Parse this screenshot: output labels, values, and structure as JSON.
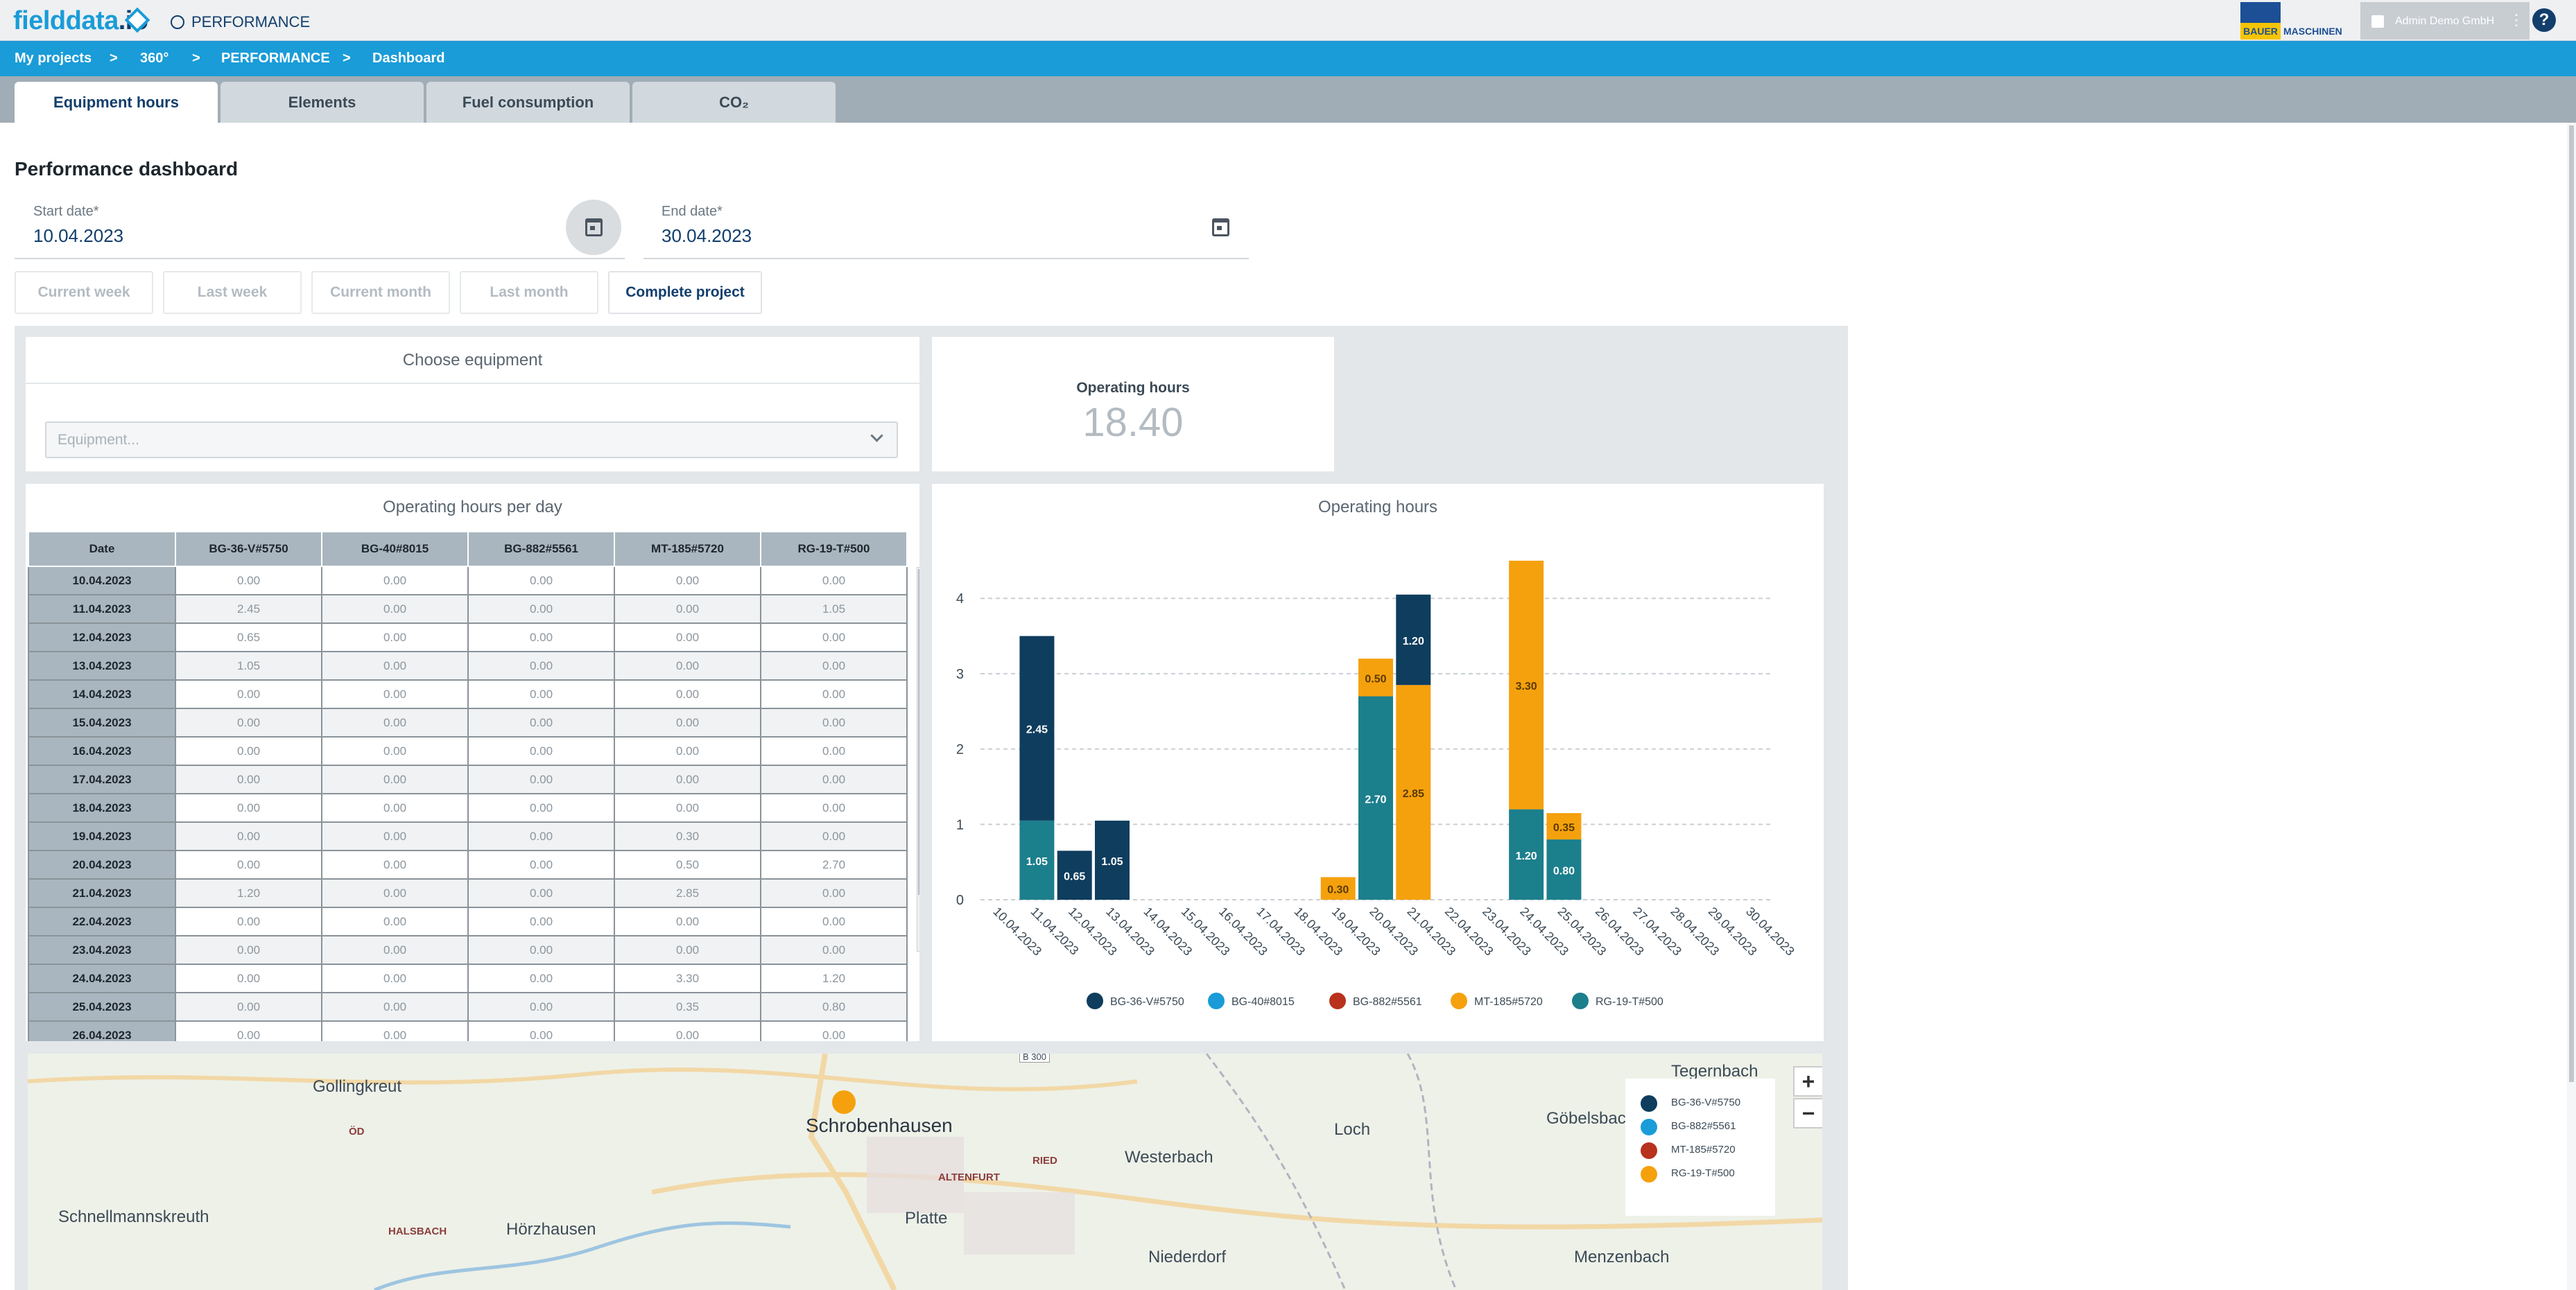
{
  "header": {
    "logo_main": "fielddata",
    "logo_suffix": ".io",
    "app_title": "PERFORMANCE",
    "brand_top": "BAUER",
    "brand_sub": "MASCHINEN",
    "user_name": "Admin Demo GmbH",
    "help": "?"
  },
  "breadcrumb": {
    "items": [
      "My projects",
      "360°",
      "PERFORMANCE",
      "Dashboard"
    ],
    "separator": ">"
  },
  "tabs": [
    "Equipment hours",
    "Elements",
    "Fuel consumption",
    "CO₂"
  ],
  "active_tab": "Equipment hours",
  "page": {
    "title": "Performance dashboard",
    "start_label": "Start date*",
    "start_value": "10.04.2023",
    "end_label": "End date*",
    "end_value": "30.04.2023",
    "quick_buttons": [
      "Current week",
      "Last week",
      "Current month",
      "Last month",
      "Complete project"
    ],
    "active_quick": "Complete project"
  },
  "equipment_card": {
    "title": "Choose equipment",
    "placeholder": "Equipment..."
  },
  "operating_card": {
    "label": "Operating hours",
    "value": "18.40"
  },
  "table": {
    "title": "Operating hours per day",
    "columns": [
      "Date",
      "BG-36-V#5750",
      "BG-40#8015",
      "BG-882#5561",
      "MT-185#5720",
      "RG-19-T#500"
    ],
    "rows": [
      [
        "10.04.2023",
        "0.00",
        "0.00",
        "0.00",
        "0.00",
        "0.00"
      ],
      [
        "11.04.2023",
        "2.45",
        "0.00",
        "0.00",
        "0.00",
        "1.05"
      ],
      [
        "12.04.2023",
        "0.65",
        "0.00",
        "0.00",
        "0.00",
        "0.00"
      ],
      [
        "13.04.2023",
        "1.05",
        "0.00",
        "0.00",
        "0.00",
        "0.00"
      ],
      [
        "14.04.2023",
        "0.00",
        "0.00",
        "0.00",
        "0.00",
        "0.00"
      ],
      [
        "15.04.2023",
        "0.00",
        "0.00",
        "0.00",
        "0.00",
        "0.00"
      ],
      [
        "16.04.2023",
        "0.00",
        "0.00",
        "0.00",
        "0.00",
        "0.00"
      ],
      [
        "17.04.2023",
        "0.00",
        "0.00",
        "0.00",
        "0.00",
        "0.00"
      ],
      [
        "18.04.2023",
        "0.00",
        "0.00",
        "0.00",
        "0.00",
        "0.00"
      ],
      [
        "19.04.2023",
        "0.00",
        "0.00",
        "0.00",
        "0.30",
        "0.00"
      ],
      [
        "20.04.2023",
        "0.00",
        "0.00",
        "0.00",
        "0.50",
        "2.70"
      ],
      [
        "21.04.2023",
        "1.20",
        "0.00",
        "0.00",
        "2.85",
        "0.00"
      ],
      [
        "22.04.2023",
        "0.00",
        "0.00",
        "0.00",
        "0.00",
        "0.00"
      ],
      [
        "23.04.2023",
        "0.00",
        "0.00",
        "0.00",
        "0.00",
        "0.00"
      ],
      [
        "24.04.2023",
        "0.00",
        "0.00",
        "0.00",
        "3.30",
        "1.20"
      ],
      [
        "25.04.2023",
        "0.00",
        "0.00",
        "0.00",
        "0.35",
        "0.80"
      ],
      [
        "26.04.2023",
        "0.00",
        "0.00",
        "0.00",
        "0.00",
        "0.00"
      ]
    ]
  },
  "colors": {
    "BG-36-V#5750": "#0e3d5e",
    "BG-40#8015": "#1a9cd8",
    "BG-882#5561": "#b8321e",
    "MT-185#5720": "#f5a10d",
    "RG-19-T#500": "#1c7f8c",
    "accent": "#1a9cd8",
    "navy": "#123e6c"
  },
  "chart_data": {
    "type": "bar",
    "stacked": true,
    "title": "Operating hours",
    "categories": [
      "10.04.2023",
      "11.04.2023",
      "12.04.2023",
      "13.04.2023",
      "14.04.2023",
      "15.04.2023",
      "16.04.2023",
      "17.04.2023",
      "18.04.2023",
      "19.04.2023",
      "20.04.2023",
      "21.04.2023",
      "22.04.2023",
      "23.04.2023",
      "24.04.2023",
      "25.04.2023",
      "26.04.2023",
      "27.04.2023",
      "28.04.2023",
      "29.04.2023",
      "30.04.2023"
    ],
    "series": [
      {
        "name": "BG-36-V#5750",
        "values": [
          0,
          2.45,
          0.65,
          1.05,
          0,
          0,
          0,
          0,
          0,
          0,
          0,
          1.2,
          0,
          0,
          0,
          0,
          0,
          0,
          0,
          0,
          0
        ]
      },
      {
        "name": "BG-40#8015",
        "values": [
          0,
          0,
          0,
          0,
          0,
          0,
          0,
          0,
          0,
          0,
          0,
          0,
          0,
          0,
          0,
          0,
          0,
          0,
          0,
          0,
          0
        ]
      },
      {
        "name": "BG-882#5561",
        "values": [
          0,
          0,
          0,
          0,
          0,
          0,
          0,
          0,
          0,
          0,
          0,
          0,
          0,
          0,
          0,
          0,
          0,
          0,
          0,
          0,
          0
        ]
      },
      {
        "name": "MT-185#5720",
        "values": [
          0,
          0,
          0,
          0,
          0,
          0,
          0,
          0,
          0,
          0.3,
          0.5,
          2.85,
          0,
          0,
          3.3,
          0.35,
          0,
          0,
          0,
          0,
          0
        ]
      },
      {
        "name": "RG-19-T#500",
        "values": [
          0,
          1.05,
          0,
          0,
          0,
          0,
          0,
          0,
          0,
          0,
          2.7,
          0,
          0,
          0,
          1.2,
          0.8,
          0,
          0,
          0,
          0,
          0
        ]
      }
    ],
    "yticks": [
      0,
      1,
      2,
      3,
      4
    ],
    "ylim": [
      0,
      4.6
    ],
    "grid": true,
    "legend_position": "bottom"
  },
  "map": {
    "places": [
      "Gollingkreut",
      "ÖD",
      "Schrobenhausen",
      "ALTENFURT",
      "RIED",
      "Westerbach",
      "Loch",
      "Göbelsbach",
      "Schnellmannskreuth",
      "HALSBACH",
      "Hörzhausen",
      "Platte",
      "Niederdorf",
      "Menzenbach",
      "Tegernbach",
      "B 300"
    ],
    "legend": [
      "BG-36-V#5750",
      "BG-882#5561",
      "MT-185#5720",
      "RG-19-T#500"
    ],
    "zoom_in": "+",
    "zoom_out": "−"
  }
}
